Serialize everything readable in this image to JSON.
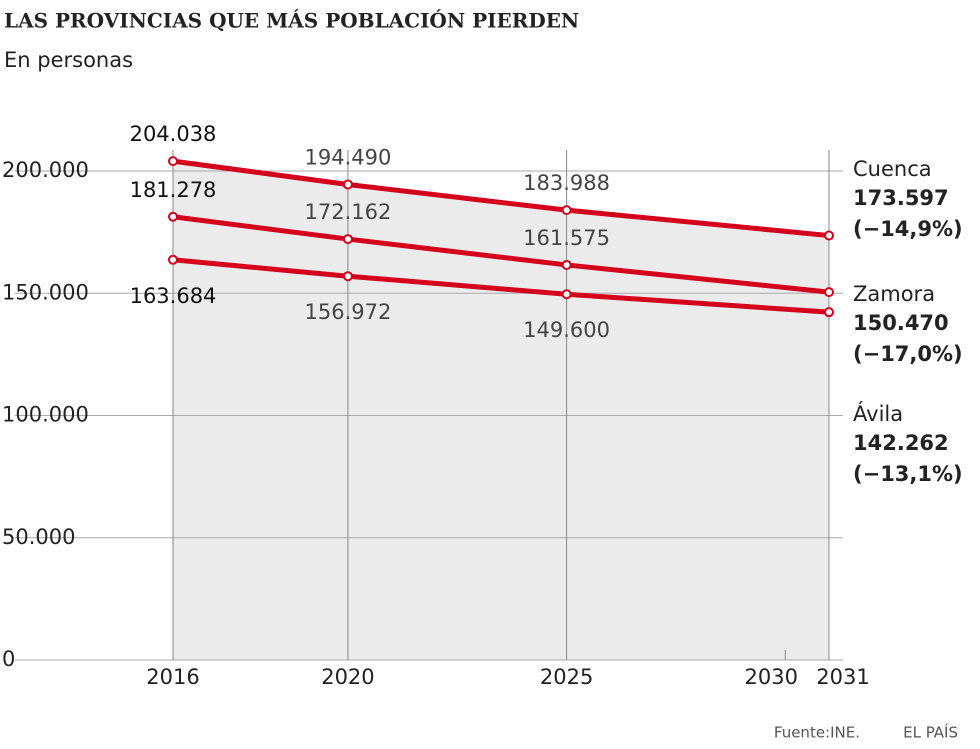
{
  "chart_data": {
    "type": "line",
    "title": "LAS PROVINCIAS QUE MÁS POBLACIÓN PIERDEN",
    "subtitle": "En personas",
    "x": [
      2016,
      2020,
      2025,
      2031
    ],
    "xlim": [
      2016,
      2031
    ],
    "xticks": [
      2016,
      2020,
      2025,
      2030,
      2031
    ],
    "ylim": [
      0,
      200000
    ],
    "yticks": [
      {
        "value": 0,
        "label": "0"
      },
      {
        "value": 50000,
        "label": "50.000"
      },
      {
        "value": 100000,
        "label": "100.000"
      },
      {
        "value": 150000,
        "label": "150.000"
      },
      {
        "value": 200000,
        "label": "200.000"
      }
    ],
    "grid": true,
    "color": "#d5001c",
    "series": [
      {
        "name": "Cuenca",
        "values": [
          204038,
          194490,
          183988,
          173597
        ],
        "value_labels": [
          "204.038",
          "194.490",
          "183.988",
          "173.597"
        ],
        "change": {
          "value": -14.9,
          "label": "(−14,9%)"
        },
        "label_position": "above"
      },
      {
        "name": "Zamora",
        "values": [
          181278,
          172162,
          161575,
          150470
        ],
        "value_labels": [
          "181.278",
          "172.162",
          "161.575",
          "150.470"
        ],
        "change": {
          "value": -17.0,
          "label": "(−17,0%)"
        },
        "label_position": "above"
      },
      {
        "name": "Ávila",
        "values": [
          163684,
          156972,
          149600,
          142262
        ],
        "value_labels": [
          "163.684",
          "156.972",
          "149.600",
          "142.262"
        ],
        "change": {
          "value": -13.1,
          "label": "(−13,1%)"
        },
        "label_position": "below"
      }
    ],
    "source": "Fuente:INE.",
    "credit": "EL PAÍS"
  }
}
